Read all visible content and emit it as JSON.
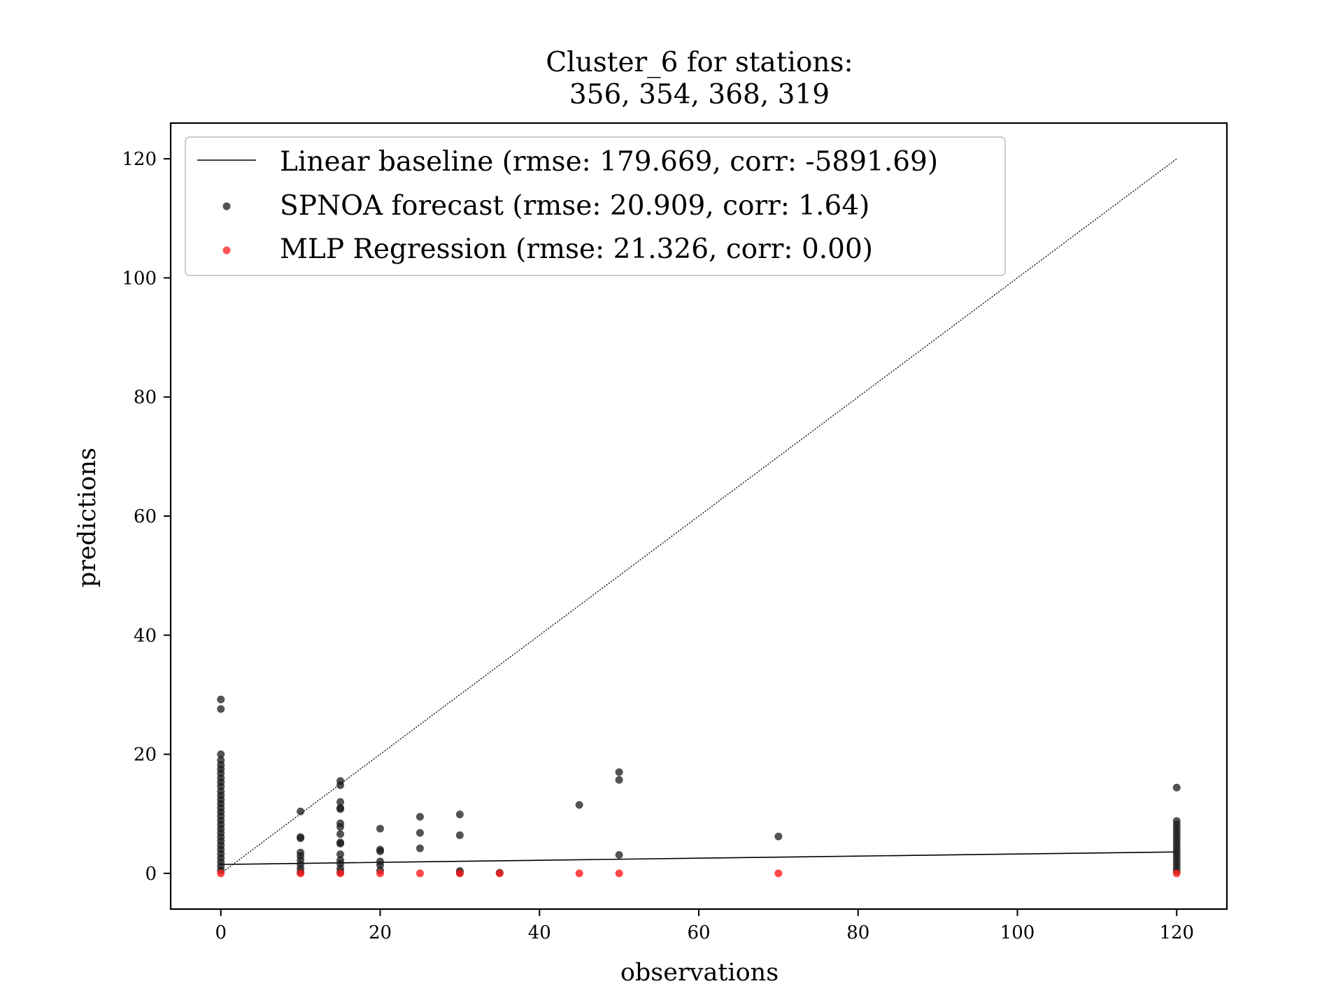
{
  "chart_data": {
    "type": "scatter",
    "title_lines": [
      "Cluster_6 for stations:",
      "356, 354, 368, 319"
    ],
    "xlabel": "observations",
    "ylabel": "predictions",
    "xlim": [
      -6.3,
      126.3
    ],
    "ylim": [
      -6,
      126
    ],
    "xticks": [
      0,
      20,
      40,
      60,
      80,
      100,
      120
    ],
    "yticks": [
      0,
      20,
      40,
      60,
      80,
      100,
      120
    ],
    "grid": false,
    "legend_position": "top-left",
    "identity_line": {
      "x": [
        0,
        120
      ],
      "y": [
        0,
        120
      ],
      "style": "dotted",
      "color": "#000000"
    },
    "series": [
      {
        "name": "Linear baseline (rmse: 179.669, corr: -5891.69)",
        "kind": "line",
        "color": "#000000",
        "x": [
          0,
          120
        ],
        "y": [
          1.5,
          3.6
        ]
      },
      {
        "name": "SPNOA forecast (rmse: 20.909, corr: 1.64)",
        "kind": "scatter",
        "color": "#1a1a1a",
        "points": [
          [
            0,
            29.2
          ],
          [
            0,
            27.6
          ],
          [
            0,
            20.0
          ],
          [
            0,
            19.0
          ],
          [
            0,
            18.2
          ],
          [
            0,
            17.5
          ],
          [
            0,
            16.8
          ],
          [
            0,
            16.0
          ],
          [
            0,
            15.3
          ],
          [
            0,
            14.6
          ],
          [
            0,
            13.8
          ],
          [
            0,
            13.1
          ],
          [
            0,
            12.4
          ],
          [
            0,
            11.7
          ],
          [
            0,
            11.0
          ],
          [
            0,
            10.3
          ],
          [
            0,
            9.6
          ],
          [
            0,
            8.9
          ],
          [
            0,
            8.2
          ],
          [
            0,
            7.5
          ],
          [
            0,
            6.8
          ],
          [
            0,
            6.1
          ],
          [
            0,
            5.4
          ],
          [
            0,
            4.7
          ],
          [
            0,
            4.0
          ],
          [
            0,
            3.3
          ],
          [
            0,
            2.6
          ],
          [
            0,
            1.9
          ],
          [
            0,
            1.2
          ],
          [
            0,
            0.5
          ],
          [
            10,
            10.4
          ],
          [
            10,
            6.1
          ],
          [
            10,
            5.9
          ],
          [
            10,
            3.5
          ],
          [
            10,
            2.9
          ],
          [
            10,
            2.2
          ],
          [
            10,
            1.5
          ],
          [
            10,
            0.8
          ],
          [
            10,
            0.2
          ],
          [
            15,
            15.5
          ],
          [
            15,
            14.8
          ],
          [
            15,
            12.0
          ],
          [
            15,
            11.0
          ],
          [
            15,
            10.8
          ],
          [
            15,
            8.4
          ],
          [
            15,
            7.8
          ],
          [
            15,
            6.6
          ],
          [
            15,
            5.2
          ],
          [
            15,
            5.0
          ],
          [
            15,
            3.2
          ],
          [
            15,
            2.2
          ],
          [
            15,
            1.6
          ],
          [
            15,
            0.8
          ],
          [
            15,
            0.2
          ],
          [
            20,
            7.5
          ],
          [
            20,
            4.0
          ],
          [
            20,
            3.7
          ],
          [
            20,
            2.0
          ],
          [
            20,
            1.4
          ],
          [
            20,
            0.5
          ],
          [
            25,
            9.5
          ],
          [
            25,
            6.8
          ],
          [
            25,
            4.2
          ],
          [
            30,
            9.9
          ],
          [
            30,
            6.4
          ],
          [
            30,
            0.4
          ],
          [
            30,
            0.1
          ],
          [
            35,
            0.1
          ],
          [
            45,
            11.5
          ],
          [
            50,
            17.0
          ],
          [
            50,
            15.7
          ],
          [
            50,
            3.1
          ],
          [
            70,
            6.2
          ],
          [
            120,
            14.4
          ],
          [
            120,
            8.8
          ],
          [
            120,
            8.2
          ],
          [
            120,
            7.6
          ],
          [
            120,
            7.0
          ],
          [
            120,
            6.4
          ],
          [
            120,
            5.8
          ],
          [
            120,
            5.2
          ],
          [
            120,
            4.6
          ],
          [
            120,
            4.0
          ],
          [
            120,
            3.4
          ],
          [
            120,
            2.8
          ],
          [
            120,
            2.2
          ],
          [
            120,
            1.6
          ],
          [
            120,
            1.0
          ],
          [
            120,
            0.4
          ]
        ]
      },
      {
        "name": "MLP Regression (rmse: 21.326, corr: 0.00)",
        "kind": "scatter",
        "color": "#ff1a1a",
        "points": [
          [
            0,
            0
          ],
          [
            10,
            0
          ],
          [
            15,
            0
          ],
          [
            20,
            0
          ],
          [
            25,
            0
          ],
          [
            30,
            0
          ],
          [
            35,
            0
          ],
          [
            45,
            0
          ],
          [
            50,
            0
          ],
          [
            70,
            0
          ],
          [
            120,
            0
          ]
        ]
      }
    ]
  }
}
